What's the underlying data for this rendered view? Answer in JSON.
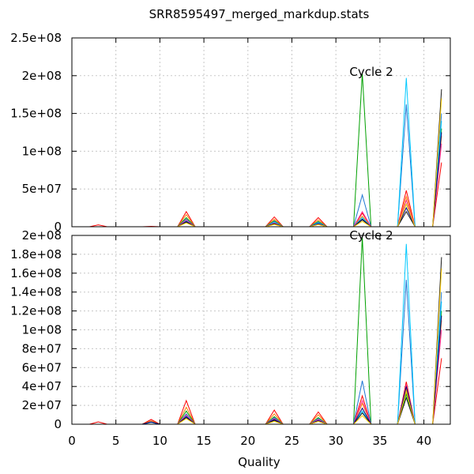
{
  "title": "SRR8595497_merged_markdup.stats",
  "chart_data": [
    {
      "type": "line",
      "panel": "top",
      "annotation": "Cycle 2",
      "xlim": [
        0,
        43
      ],
      "ylim": [
        0,
        250000000
      ],
      "x_ticks": [],
      "y_ticks": [
        {
          "value": 0,
          "label": "0"
        },
        {
          "value": 50000000,
          "label": "5e+07"
        },
        {
          "value": 100000000,
          "label": "1e+08"
        },
        {
          "value": 150000000,
          "label": "1.5e+08"
        },
        {
          "value": 200000000,
          "label": "2e+08"
        },
        {
          "value": 250000000,
          "label": "2.5e+08"
        }
      ],
      "grid": true,
      "series": [
        {
          "color": "#ff0000",
          "x": [
            2,
            3,
            4,
            8,
            9,
            10,
            12,
            13,
            14,
            22,
            23,
            24,
            27,
            28,
            29,
            32,
            33,
            34,
            37,
            38,
            39,
            41,
            42
          ],
          "y": [
            0,
            2500000,
            0,
            0,
            500000,
            0,
            0,
            20000000,
            0,
            0,
            13000000,
            0,
            0,
            12000000,
            0,
            0,
            18000000,
            0,
            0,
            48000000,
            0,
            0,
            85000000
          ]
        },
        {
          "color": "#ff7f00",
          "x": [
            12,
            13,
            14,
            22,
            23,
            24,
            27,
            28,
            29,
            32,
            33,
            34,
            37,
            38,
            39,
            41,
            42
          ],
          "y": [
            0,
            16000000,
            0,
            0,
            10000000,
            0,
            0,
            9000000,
            0,
            0,
            14000000,
            0,
            0,
            40000000,
            0,
            0,
            120000000
          ]
        },
        {
          "color": "#00a000",
          "x": [
            12,
            13,
            14,
            22,
            23,
            24,
            27,
            28,
            29,
            32,
            33,
            34,
            37,
            38,
            39,
            41,
            42
          ],
          "y": [
            0,
            12000000,
            0,
            0,
            8000000,
            0,
            0,
            7000000,
            0,
            0,
            203000000,
            0,
            0,
            30000000,
            0,
            0,
            130000000
          ]
        },
        {
          "color": "#1f77d4",
          "x": [
            12,
            13,
            14,
            22,
            23,
            24,
            27,
            28,
            29,
            32,
            33,
            34,
            37,
            38,
            39,
            41,
            42
          ],
          "y": [
            0,
            10000000,
            0,
            0,
            7000000,
            0,
            0,
            6000000,
            0,
            0,
            42000000,
            0,
            0,
            162000000,
            0,
            0,
            150000000
          ]
        },
        {
          "color": "#00c8ff",
          "x": [
            12,
            13,
            14,
            22,
            23,
            24,
            27,
            28,
            29,
            32,
            33,
            34,
            37,
            38,
            39,
            41,
            42
          ],
          "y": [
            0,
            8000000,
            0,
            0,
            6000000,
            0,
            0,
            5000000,
            0,
            0,
            12000000,
            0,
            0,
            197000000,
            0,
            0,
            140000000
          ]
        },
        {
          "color": "#ff3399",
          "x": [
            12,
            13,
            14,
            22,
            23,
            24,
            27,
            28,
            29,
            32,
            33,
            34,
            37,
            38,
            39,
            41,
            42
          ],
          "y": [
            0,
            9000000,
            0,
            0,
            5000000,
            0,
            0,
            4000000,
            0,
            0,
            20000000,
            0,
            0,
            35000000,
            0,
            0,
            110000000
          ]
        },
        {
          "color": "#000080",
          "x": [
            12,
            13,
            14,
            22,
            23,
            24,
            27,
            28,
            29,
            32,
            33,
            34,
            37,
            38,
            39,
            41,
            42
          ],
          "y": [
            0,
            7000000,
            0,
            0,
            4000000,
            0,
            0,
            4000000,
            0,
            0,
            10000000,
            0,
            0,
            25000000,
            0,
            0,
            125000000
          ]
        },
        {
          "color": "#1a1a1a",
          "x": [
            12,
            13,
            14,
            22,
            23,
            24,
            27,
            28,
            29,
            32,
            33,
            34,
            37,
            38,
            39,
            41,
            42
          ],
          "y": [
            0,
            6000000,
            0,
            0,
            4000000,
            0,
            0,
            3000000,
            0,
            0,
            9000000,
            0,
            0,
            20000000,
            0,
            0,
            182000000
          ]
        },
        {
          "color": "#ffcc00",
          "x": [
            12,
            13,
            14,
            22,
            23,
            24,
            27,
            28,
            29,
            32,
            33,
            34,
            37,
            38,
            39,
            41,
            42
          ],
          "y": [
            0,
            5000000,
            0,
            0,
            3000000,
            0,
            0,
            3000000,
            0,
            0,
            7000000,
            0,
            0,
            30000000,
            0,
            0,
            170000000
          ]
        }
      ]
    },
    {
      "type": "line",
      "panel": "bottom",
      "annotation": "Cycle 2",
      "xlim": [
        0,
        43
      ],
      "ylim": [
        0,
        200000000
      ],
      "xlabel": "Quality",
      "x_ticks": [
        {
          "value": 0,
          "label": "0"
        },
        {
          "value": 5,
          "label": "5"
        },
        {
          "value": 10,
          "label": "10"
        },
        {
          "value": 15,
          "label": "15"
        },
        {
          "value": 20,
          "label": "20"
        },
        {
          "value": 25,
          "label": "25"
        },
        {
          "value": 30,
          "label": "30"
        },
        {
          "value": 35,
          "label": "35"
        },
        {
          "value": 40,
          "label": "40"
        }
      ],
      "y_ticks": [
        {
          "value": 0,
          "label": "0"
        },
        {
          "value": 20000000,
          "label": "2e+07"
        },
        {
          "value": 40000000,
          "label": "4e+07"
        },
        {
          "value": 60000000,
          "label": "6e+07"
        },
        {
          "value": 80000000,
          "label": "8e+07"
        },
        {
          "value": 100000000,
          "label": "1e+08"
        },
        {
          "value": 120000000,
          "label": "1.2e+08"
        },
        {
          "value": 140000000,
          "label": "1.4e+08"
        },
        {
          "value": 160000000,
          "label": "1.6e+08"
        },
        {
          "value": 180000000,
          "label": "1.8e+08"
        },
        {
          "value": 200000000,
          "label": "2e+08"
        }
      ],
      "grid": true,
      "series": [
        {
          "color": "#ff0000",
          "x": [
            2,
            3,
            4,
            8,
            9,
            10,
            12,
            13,
            14,
            22,
            23,
            24,
            27,
            28,
            29,
            32,
            33,
            34,
            37,
            38,
            39,
            41,
            42
          ],
          "y": [
            0,
            2500000,
            0,
            0,
            5000000,
            0,
            0,
            25000000,
            0,
            0,
            15000000,
            0,
            0,
            13000000,
            0,
            0,
            30000000,
            0,
            0,
            45000000,
            0,
            0,
            70000000
          ]
        },
        {
          "color": "#ff7f00",
          "x": [
            8,
            9,
            10,
            12,
            13,
            14,
            22,
            23,
            24,
            27,
            28,
            29,
            32,
            33,
            34,
            37,
            38,
            39,
            41,
            42
          ],
          "y": [
            0,
            3500000,
            0,
            0,
            18000000,
            0,
            0,
            11000000,
            0,
            0,
            10000000,
            0,
            0,
            22000000,
            0,
            0,
            38000000,
            0,
            0,
            110000000
          ]
        },
        {
          "color": "#00a000",
          "x": [
            8,
            9,
            10,
            12,
            13,
            14,
            22,
            23,
            24,
            27,
            28,
            29,
            32,
            33,
            34,
            37,
            38,
            39,
            41,
            42
          ],
          "y": [
            0,
            2000000,
            0,
            0,
            14000000,
            0,
            0,
            8000000,
            0,
            0,
            7000000,
            0,
            0,
            198000000,
            0,
            0,
            32000000,
            0,
            0,
            120000000
          ]
        },
        {
          "color": "#1f77d4",
          "x": [
            8,
            9,
            10,
            12,
            13,
            14,
            22,
            23,
            24,
            27,
            28,
            29,
            32,
            33,
            34,
            37,
            38,
            39,
            41,
            42
          ],
          "y": [
            0,
            2000000,
            0,
            0,
            11000000,
            0,
            0,
            7000000,
            0,
            0,
            6000000,
            0,
            0,
            46000000,
            0,
            0,
            153000000,
            0,
            0,
            140000000
          ]
        },
        {
          "color": "#00c8ff",
          "x": [
            12,
            13,
            14,
            22,
            23,
            24,
            27,
            28,
            29,
            32,
            33,
            34,
            37,
            38,
            39,
            41,
            42
          ],
          "y": [
            0,
            9000000,
            0,
            0,
            6000000,
            0,
            0,
            5000000,
            0,
            0,
            14000000,
            0,
            0,
            191000000,
            0,
            0,
            130000000
          ]
        },
        {
          "color": "#ff3399",
          "x": [
            12,
            13,
            14,
            22,
            23,
            24,
            27,
            28,
            29,
            32,
            33,
            34,
            37,
            38,
            39,
            41,
            42
          ],
          "y": [
            0,
            10000000,
            0,
            0,
            6000000,
            0,
            0,
            5000000,
            0,
            0,
            25000000,
            0,
            0,
            42000000,
            0,
            0,
            100000000
          ]
        },
        {
          "color": "#000080",
          "x": [
            8,
            9,
            10,
            12,
            13,
            14,
            22,
            23,
            24,
            27,
            28,
            29,
            32,
            33,
            34,
            37,
            38,
            39,
            41,
            42
          ],
          "y": [
            0,
            2500000,
            0,
            0,
            8000000,
            0,
            0,
            5000000,
            0,
            0,
            4000000,
            0,
            0,
            17000000,
            0,
            0,
            40000000,
            0,
            0,
            115000000
          ]
        },
        {
          "color": "#1a1a1a",
          "x": [
            12,
            13,
            14,
            22,
            23,
            24,
            27,
            28,
            29,
            32,
            33,
            34,
            37,
            38,
            39,
            41,
            42
          ],
          "y": [
            0,
            7000000,
            0,
            0,
            4000000,
            0,
            0,
            3000000,
            0,
            0,
            12000000,
            0,
            0,
            28000000,
            0,
            0,
            177000000
          ]
        },
        {
          "color": "#ffcc00",
          "x": [
            12,
            13,
            14,
            22,
            23,
            24,
            27,
            28,
            29,
            32,
            33,
            34,
            37,
            38,
            39,
            41,
            42
          ],
          "y": [
            0,
            6000000,
            0,
            0,
            3000000,
            0,
            0,
            3000000,
            0,
            0,
            9000000,
            0,
            0,
            35000000,
            0,
            0,
            165000000
          ]
        }
      ]
    }
  ]
}
